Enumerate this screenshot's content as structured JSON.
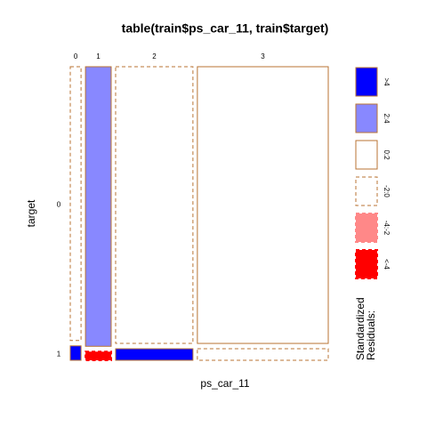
{
  "chart_data": {
    "type": "mosaic",
    "title": "table(train$ps_car_11, train$target)",
    "xlabel": "ps_car_11",
    "ylabel": "target",
    "categories": [
      "0",
      "1",
      "2",
      "3"
    ],
    "rows": [
      "0",
      "1"
    ],
    "widths": [
      0.044,
      0.105,
      0.316,
      0.535
    ],
    "row1_share": [
      0.05,
      0.03,
      0.04,
      0.04
    ],
    "cell_classes": [
      [
        3,
        0
      ],
      [
        1,
        5
      ],
      [
        3,
        0
      ],
      [
        2,
        3
      ]
    ],
    "legend_title": [
      "Standardized",
      "Residuals:"
    ],
    "legend": [
      {
        "label": ">4",
        "fill": "#0000ff",
        "dashed": false
      },
      {
        "label": "2:4",
        "fill": "#8888ff",
        "dashed": false
      },
      {
        "label": "0:2",
        "fill": "#ffffff",
        "dashed": false
      },
      {
        "label": "-2:0",
        "fill": "#ffffff",
        "dashed": true
      },
      {
        "label": "-4:-2",
        "fill": "#ff8888",
        "dashed": true
      },
      {
        "label": "<-4",
        "fill": "#ff0000",
        "dashed": true
      }
    ],
    "border_color": "#b87333"
  }
}
